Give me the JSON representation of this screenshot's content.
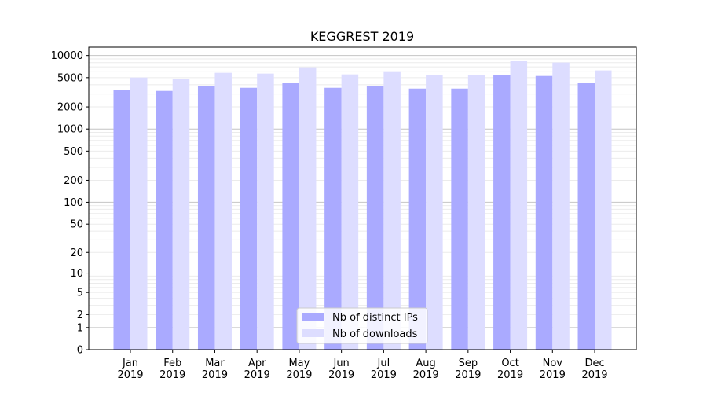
{
  "chart_data": {
    "type": "bar",
    "title": "KEGGREST 2019",
    "xlabel": "",
    "ylabel": "",
    "yscale": "log10(1+y)",
    "ylim": [
      0,
      13000
    ],
    "grid": true,
    "legend_position": "lower center",
    "categories": [
      "Jan\n2019",
      "Feb\n2019",
      "Mar\n2019",
      "Apr\n2019",
      "May\n2019",
      "Jun\n2019",
      "Jul\n2019",
      "Aug\n2019",
      "Sep\n2019",
      "Oct\n2019",
      "Nov\n2019",
      "Dec\n2019"
    ],
    "yticks": [
      0,
      1,
      2,
      5,
      10,
      20,
      50,
      100,
      200,
      500,
      1000,
      2000,
      5000,
      10000
    ],
    "series": [
      {
        "name": "Nb of distinct IPs",
        "color": "#aaaaff",
        "values": [
          3380,
          3300,
          3830,
          3640,
          4230,
          3640,
          3830,
          3550,
          3550,
          5410,
          5270,
          4230
        ]
      },
      {
        "name": "Nb of downloads",
        "color": "#ddddff",
        "values": [
          5020,
          4780,
          5820,
          5680,
          6920,
          5540,
          6110,
          5410,
          5410,
          8420,
          8020,
          6270
        ]
      }
    ]
  }
}
